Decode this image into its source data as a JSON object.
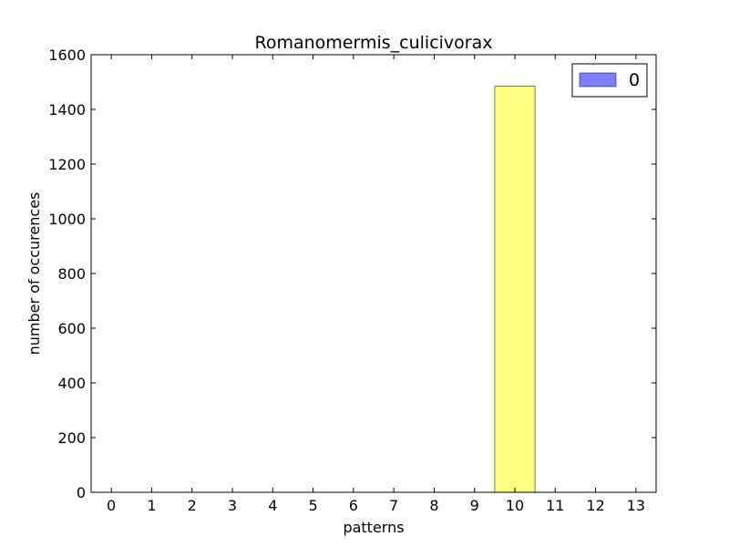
{
  "chart_data": {
    "type": "bar",
    "title": "Romanomermis_culicivorax",
    "xlabel": "patterns",
    "ylabel": "number of occurences",
    "categories": [
      "0",
      "1",
      "2",
      "3",
      "4",
      "5",
      "6",
      "7",
      "8",
      "9",
      "10",
      "11",
      "12",
      "13"
    ],
    "series": [
      {
        "name": "0",
        "values": [
          0,
          0,
          0,
          0,
          0,
          0,
          0,
          0,
          0,
          0,
          1485,
          0,
          0,
          0
        ],
        "color": "#ffff00",
        "legend_color": "#0000ff",
        "opacity": 0.5
      }
    ],
    "ylim": [
      0,
      1600
    ],
    "yticks": [
      0,
      200,
      400,
      600,
      800,
      1000,
      1200,
      1400,
      1600
    ],
    "legend_position": "top-right",
    "grid": false
  }
}
